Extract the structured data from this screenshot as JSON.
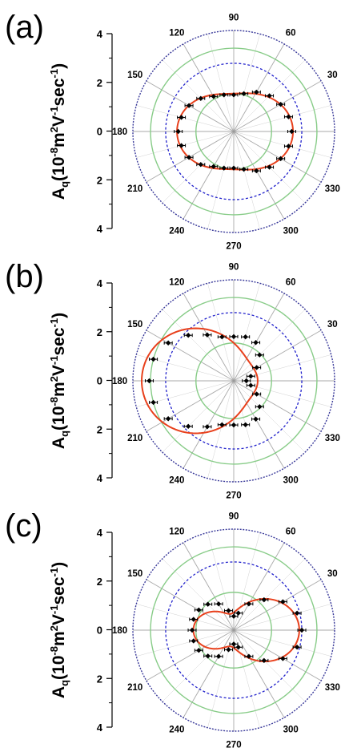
{
  "figure": {
    "ylabel": {
      "main": "A",
      "sub": "q",
      "rest1": "(10",
      "exp1": "-8",
      "rest2": "m",
      "exp2": "2",
      "rest3": "V",
      "exp3": "-1",
      "rest4": "sec",
      "exp4": "-1",
      "rest5": ")"
    }
  },
  "colors": {
    "outer_circle": "#3a3a9a",
    "dashed_circle": "#2222cc",
    "green_circle": "#88cc88",
    "spokes": "#9a9a9a",
    "fit_line": "#e8401c",
    "markers": "#000000"
  },
  "chart_data": [
    {
      "type": "scatter",
      "panel_label": "(a)",
      "coordinate_system": "polar",
      "radial_ticks": [
        "4",
        "2",
        "0",
        "2",
        "4"
      ],
      "radial_range": [
        0,
        4
      ],
      "angle_ticks": [
        "90",
        "60",
        "30",
        "0",
        "330",
        "300",
        "270",
        "240",
        "210",
        "180",
        "150",
        "120"
      ],
      "reference_circles": [
        {
          "radius": 1.5,
          "style": "green solid"
        },
        {
          "radius": 2.7,
          "style": "blue dashed"
        },
        {
          "radius": 3.3,
          "style": "green solid"
        }
      ],
      "series": [
        {
          "style": "points-with-error-bars",
          "theta": [
            0,
            15,
            30,
            45,
            60,
            75,
            90,
            105,
            120,
            135,
            150,
            165,
            180,
            195,
            210,
            225,
            240,
            255,
            270,
            285,
            300,
            315,
            330,
            345
          ],
          "r": [
            2.3,
            2.25,
            2.15,
            2.0,
            1.8,
            1.55,
            1.45,
            1.5,
            1.6,
            1.85,
            2.05,
            2.15,
            2.2,
            2.15,
            2.05,
            1.85,
            1.6,
            1.5,
            1.45,
            1.55,
            1.8,
            2.0,
            2.15,
            2.25
          ]
        },
        {
          "style": "fit-line",
          "theta_start": 0,
          "theta_end": 360,
          "r0": 1.9,
          "r1": 0.05,
          "r2": 0.4
        }
      ]
    },
    {
      "type": "scatter",
      "panel_label": "(b)",
      "coordinate_system": "polar",
      "radial_ticks": [
        "4",
        "2",
        "0",
        "2",
        "4"
      ],
      "radial_range": [
        0,
        4
      ],
      "angle_ticks": [
        "90",
        "60",
        "30",
        "0",
        "330",
        "300",
        "270",
        "240",
        "210",
        "180",
        "150",
        "120"
      ],
      "reference_circles": [
        {
          "radius": 1.5,
          "style": "green solid"
        },
        {
          "radius": 2.7,
          "style": "blue dashed"
        },
        {
          "radius": 3.3,
          "style": "green solid"
        }
      ],
      "series": [
        {
          "style": "points-with-error-bars",
          "theta": [
            0,
            15,
            30,
            45,
            60,
            75,
            90,
            105,
            120,
            135,
            150,
            165,
            180,
            195,
            210,
            225,
            240,
            255,
            270,
            285,
            300,
            315,
            330,
            345
          ],
          "r": [
            0.5,
            0.7,
            1.05,
            1.45,
            1.75,
            1.8,
            1.75,
            1.8,
            2.1,
            2.55,
            3.0,
            3.3,
            3.35,
            3.3,
            3.0,
            2.55,
            2.1,
            1.8,
            1.75,
            1.8,
            1.75,
            1.45,
            1.05,
            0.7
          ]
        },
        {
          "style": "fit-line",
          "theta_start": 0,
          "theta_end": 360,
          "r0": 1.9,
          "r1": -1.35,
          "r2": 0.4
        }
      ]
    },
    {
      "type": "scatter",
      "panel_label": "(c)",
      "coordinate_system": "polar",
      "radial_ticks": [
        "4",
        "2",
        "0",
        "2",
        "4"
      ],
      "radial_range": [
        0,
        4
      ],
      "angle_ticks": [
        "90",
        "60",
        "30",
        "0",
        "330",
        "300",
        "270",
        "240",
        "210",
        "180",
        "150",
        "120"
      ],
      "reference_circles": [
        {
          "radius": 1.5,
          "style": "green solid"
        },
        {
          "radius": 2.7,
          "style": "blue dashed"
        },
        {
          "radius": 3.3,
          "style": "green solid"
        }
      ],
      "series": [
        {
          "style": "points-with-error-bars",
          "theta": [
            0,
            15,
            30,
            45,
            60,
            75,
            90,
            105,
            120,
            135,
            150,
            165,
            180,
            195,
            210,
            225,
            240,
            255,
            270,
            285,
            300,
            315,
            330,
            345
          ],
          "r": [
            2.7,
            2.6,
            2.25,
            1.7,
            1.2,
            0.7,
            0.55,
            0.8,
            1.2,
            1.45,
            1.6,
            1.65,
            1.65,
            1.65,
            1.6,
            1.45,
            1.2,
            0.8,
            0.55,
            0.7,
            1.2,
            1.7,
            2.25,
            2.6
          ]
        },
        {
          "style": "fit-line",
          "theta_start": 0,
          "theta_end": 360,
          "r0": 1.4,
          "r1": 0.5,
          "r2": 0.7
        }
      ]
    }
  ]
}
